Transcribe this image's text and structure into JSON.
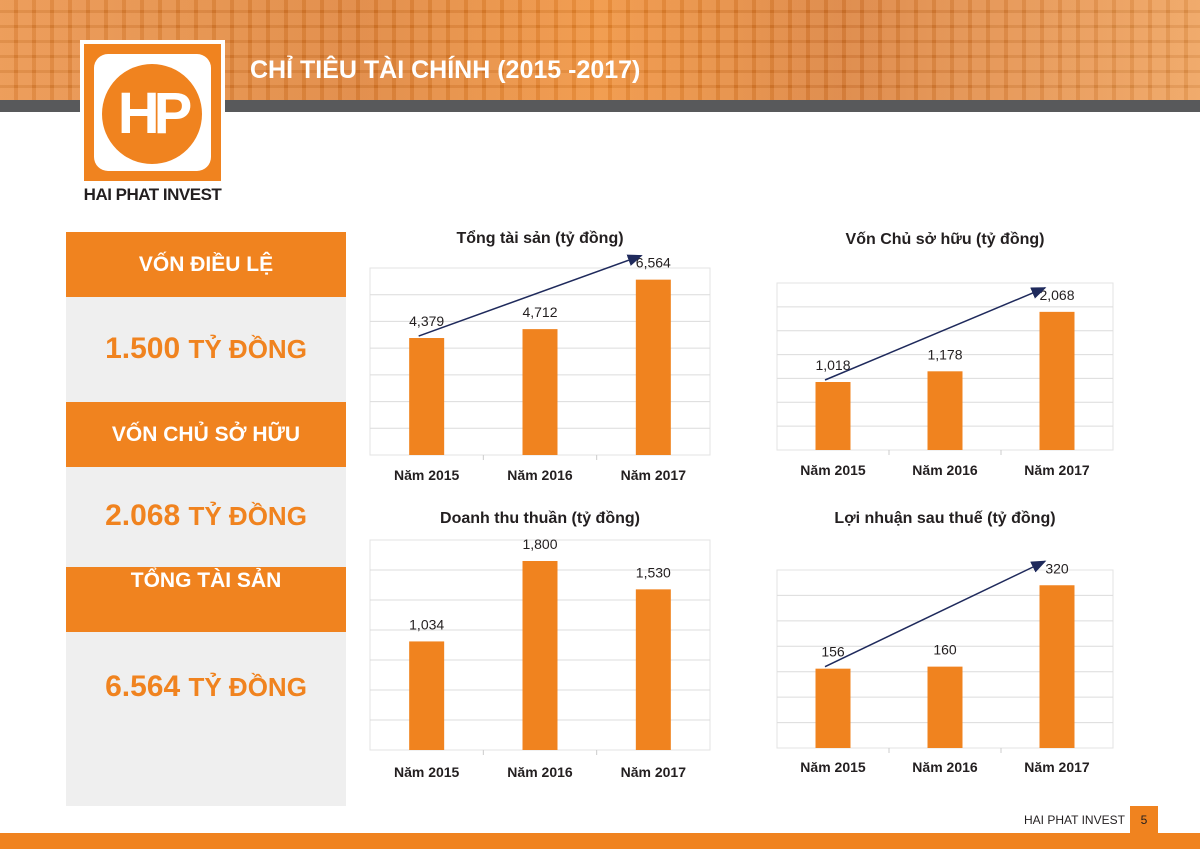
{
  "header": {
    "title": "CHỈ TIÊU TÀI CHÍNH (2015 -2017)",
    "logo_text": "HP",
    "brand": "HAI PHAT INVEST"
  },
  "colors": {
    "accent": "#f0831f",
    "arrow": "#1f2a5c",
    "strip": "#58595b"
  },
  "summary": [
    {
      "label": "VỐN ĐIỀU LỆ",
      "value": "1.500",
      "unit": "TỶ ĐỒNG"
    },
    {
      "label": "VỐN CHỦ SỞ HỮU",
      "value": "2.068",
      "unit": "TỶ ĐỒNG"
    },
    {
      "label": "TỔNG TÀI SẢN",
      "value": "6.564",
      "unit": "TỶ ĐỒNG"
    }
  ],
  "chart_data": [
    {
      "type": "bar",
      "title": "Tổng tài sản (tỷ đồng)",
      "categories": [
        "Năm 2015",
        "Năm 2016",
        "Năm 2017"
      ],
      "values": [
        4379,
        4712,
        6564
      ],
      "labels": [
        "4,379",
        "4,712",
        "6,564"
      ],
      "ylim": [
        0,
        7000
      ],
      "grid": true,
      "trend_arrow": true
    },
    {
      "type": "bar",
      "title": "Vốn Chủ sở hữu (tỷ đồng)",
      "categories": [
        "Năm 2015",
        "Năm 2016",
        "Năm 2017"
      ],
      "values": [
        1018,
        1178,
        2068
      ],
      "labels": [
        "1,018",
        "1,178",
        "2,068"
      ],
      "ylim": [
        0,
        2500
      ],
      "grid": true,
      "trend_arrow": true
    },
    {
      "type": "bar",
      "title": "Doanh thu thuần (tỷ đồng)",
      "categories": [
        "Năm 2015",
        "Năm 2016",
        "Năm 2017"
      ],
      "values": [
        1034,
        1800,
        1530
      ],
      "labels": [
        "1,034",
        "1,800",
        "1,530"
      ],
      "ylim": [
        0,
        2000
      ],
      "grid": true,
      "trend_arrow": false
    },
    {
      "type": "bar",
      "title": "Lợi nhuận sau thuế (tỷ đồng)",
      "categories": [
        "Năm 2015",
        "Năm 2016",
        "Năm 2017"
      ],
      "values": [
        156,
        160,
        320
      ],
      "labels": [
        "156",
        "160",
        "320"
      ],
      "ylim": [
        0,
        350
      ],
      "grid": true,
      "trend_arrow": true
    }
  ],
  "footer": {
    "brand": "HAI PHAT INVEST",
    "page": "5"
  }
}
